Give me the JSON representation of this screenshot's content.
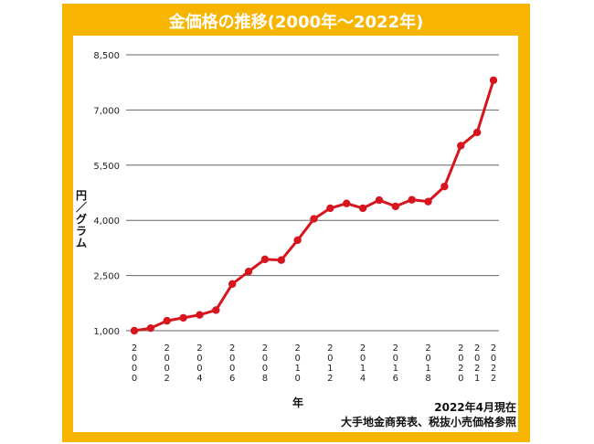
{
  "title": "金価格の推移(2000年〜2022年)",
  "chart_data": {
    "type": "line",
    "title": "金価格の推移(2000年〜2022年)",
    "ylabel": "円／グラム",
    "xlabel": "年",
    "ylim": [
      1000,
      8500
    ],
    "yticks": [
      "1,000",
      "2,500",
      "4,000",
      "5,500",
      "7,000",
      "8,500"
    ],
    "ytick_values": [
      1000,
      2500,
      4000,
      5500,
      7000,
      8500
    ],
    "xtick_years": [
      "2000",
      "2002",
      "2004",
      "2006",
      "2008",
      "2010",
      "2012",
      "2014",
      "2016",
      "2018",
      "2020",
      "2021",
      "2022"
    ],
    "grid": "horizontal",
    "series": [
      {
        "x": [
          2000,
          2001,
          2002,
          2003,
          2004,
          2005,
          2006,
          2007,
          2008,
          2009,
          2010,
          2011,
          2012,
          2013,
          2014,
          2015,
          2016,
          2017,
          2018,
          2019,
          2020,
          2021,
          2022
        ],
        "values": [
          1000,
          1070,
          1270,
          1350,
          1430,
          1560,
          2270,
          2610,
          2940,
          2920,
          3460,
          4040,
          4330,
          4460,
          4330,
          4550,
          4380,
          4560,
          4510,
          4920,
          6030,
          6390,
          7810
        ]
      }
    ],
    "color": "#d7151f"
  },
  "source": {
    "line1": "2022年4月現在",
    "line2": "大手地金商発表、税抜小売価格参照"
  }
}
